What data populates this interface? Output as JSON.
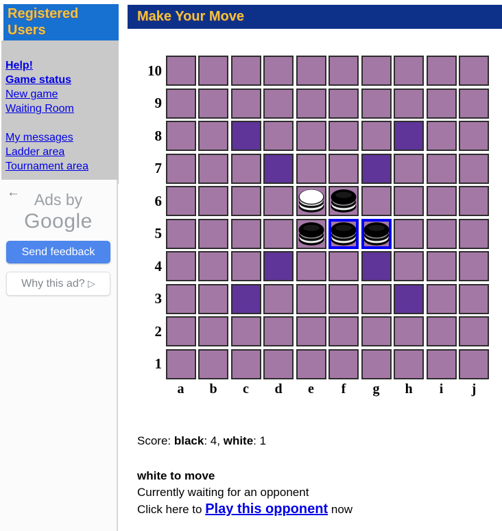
{
  "sidebar": {
    "title": "Registered Users",
    "groups": [
      [
        {
          "label": "Help!",
          "bold": true
        },
        {
          "label": "Game status",
          "bold": true
        },
        {
          "label": "New game",
          "bold": false
        },
        {
          "label": "Waiting Room",
          "bold": false
        }
      ],
      [
        {
          "label": "My messages",
          "bold": false
        },
        {
          "label": "Ladder area",
          "bold": false
        },
        {
          "label": "Tournament area",
          "bold": false
        }
      ]
    ]
  },
  "ad": {
    "back_arrow": "←",
    "line1": "Ads by",
    "line2": "Google",
    "send_feedback": "Send feedback",
    "why_this_ad": "Why this ad?",
    "adchoices_icon": "▷"
  },
  "main": {
    "title": "Make Your Move",
    "board": {
      "columns": [
        "a",
        "b",
        "c",
        "d",
        "e",
        "f",
        "g",
        "h",
        "i",
        "j"
      ],
      "rows": [
        "10",
        "9",
        "8",
        "7",
        "6",
        "5",
        "4",
        "3",
        "2",
        "1"
      ],
      "dark_squares": [
        "c8",
        "h8",
        "d7",
        "g7",
        "d4",
        "g4",
        "c3",
        "h3"
      ],
      "pieces": [
        {
          "square": "e6",
          "color": "white",
          "highlight": false
        },
        {
          "square": "f6",
          "color": "black",
          "highlight": false
        },
        {
          "square": "e5",
          "color": "black",
          "highlight": false
        },
        {
          "square": "f5",
          "color": "black",
          "highlight": true
        },
        {
          "square": "g5",
          "color": "black",
          "highlight": true
        }
      ]
    },
    "score": {
      "label": "Score: ",
      "black_label": "black",
      "black_value": "4",
      "white_label": "white",
      "white_value": "1",
      "colon": ": ",
      "comma": ", "
    },
    "status": {
      "turn": "white to move",
      "waiting": "Currently waiting for an opponent",
      "click_prefix": "Click here to",
      "link": "Play this opponent",
      "click_suffix": "now"
    }
  },
  "colors": {
    "header-navy": "#0d3189",
    "sidebar-blue": "#1771d0",
    "gold": "#f2c33d",
    "cell-purple": "#a478a5",
    "cell-dark-purple": "#5f3599",
    "highlight-blue": "#0000f6",
    "link-blue": "#0000e6",
    "feedback-blue": "#4d86ec"
  }
}
